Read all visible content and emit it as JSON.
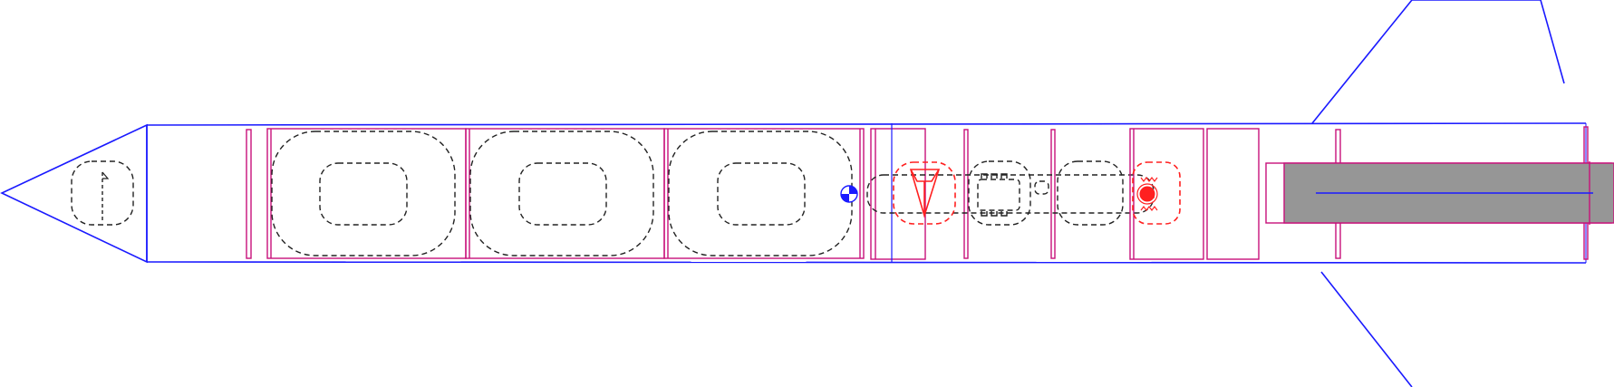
{
  "view": {
    "name": "rocket-side-view",
    "colors": {
      "outline": "#1a1aff",
      "component": "#c8107a",
      "internal_component": "#222222",
      "recovery": "#ff2020",
      "motor_fill": "#969696",
      "cg_marker": "#1a1aff"
    }
  },
  "components": [
    "nose-cone",
    "body-tube",
    "centering-ring",
    "payload-bay",
    "mass-component",
    "parachute",
    "shock-cord",
    "motor-mount-tube",
    "motor",
    "fin-set"
  ]
}
